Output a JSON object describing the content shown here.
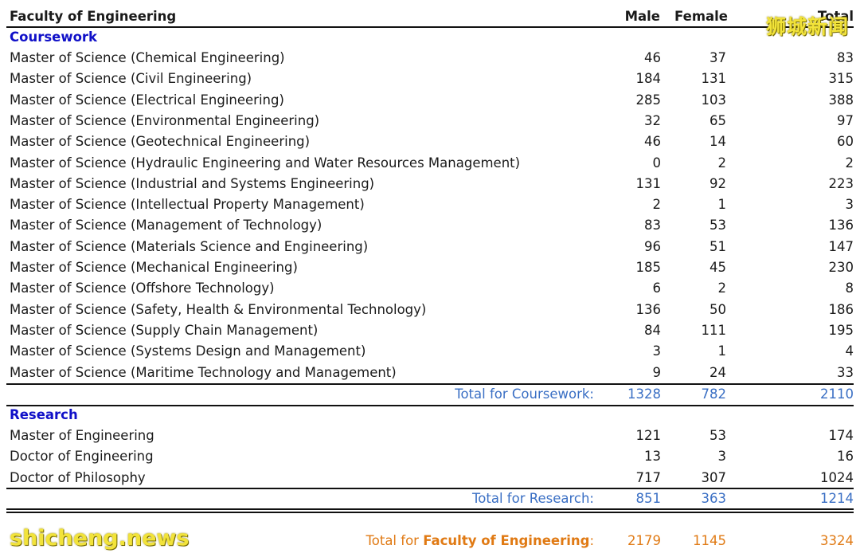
{
  "header": {
    "faculty": "Faculty of Engineering",
    "male": "Male",
    "female": "Female",
    "total": "Total"
  },
  "coursework": {
    "title": "Coursework",
    "rows": [
      {
        "program": "Master of Science (Chemical Engineering)",
        "male": "46",
        "female": "37",
        "total": "83"
      },
      {
        "program": "Master of Science (Civil Engineering)",
        "male": "184",
        "female": "131",
        "total": "315"
      },
      {
        "program": "Master of Science (Electrical Engineering)",
        "male": "285",
        "female": "103",
        "total": "388"
      },
      {
        "program": "Master of Science (Environmental Engineering)",
        "male": "32",
        "female": "65",
        "total": "97"
      },
      {
        "program": "Master of Science (Geotechnical Engineering)",
        "male": "46",
        "female": "14",
        "total": "60"
      },
      {
        "program": "Master of Science (Hydraulic Engineering and Water Resources Management)",
        "male": "0",
        "female": "2",
        "total": "2"
      },
      {
        "program": "Master of Science (Industrial and Systems Engineering)",
        "male": "131",
        "female": "92",
        "total": "223"
      },
      {
        "program": "Master of Science (Intellectual Property Management)",
        "male": "2",
        "female": "1",
        "total": "3"
      },
      {
        "program": "Master of Science (Management of Technology)",
        "male": "83",
        "female": "53",
        "total": "136"
      },
      {
        "program": "Master of Science (Materials Science and Engineering)",
        "male": "96",
        "female": "51",
        "total": "147"
      },
      {
        "program": "Master of Science (Mechanical Engineering)",
        "male": "185",
        "female": "45",
        "total": "230"
      },
      {
        "program": "Master of Science (Offshore Technology)",
        "male": "6",
        "female": "2",
        "total": "8"
      },
      {
        "program": "Master of Science (Safety, Health & Environmental Technology)",
        "male": "136",
        "female": "50",
        "total": "186"
      },
      {
        "program": "Master of Science (Supply Chain Management)",
        "male": "84",
        "female": "111",
        "total": "195"
      },
      {
        "program": "Master of Science (Systems Design and Management)",
        "male": "3",
        "female": "1",
        "total": "4"
      },
      {
        "program": "Master of Science (Maritime Technology and Management)",
        "male": "9",
        "female": "24",
        "total": "33"
      }
    ],
    "total_label": "Total for Coursework:",
    "total_male": "1328",
    "total_female": "782",
    "total_total": "2110"
  },
  "research": {
    "title": "Research",
    "rows": [
      {
        "program": "Master of Engineering",
        "male": "121",
        "female": "53",
        "total": "174"
      },
      {
        "program": "Doctor of Engineering",
        "male": "13",
        "female": "3",
        "total": "16"
      },
      {
        "program": "Doctor of Philosophy",
        "male": "717",
        "female": "307",
        "total": "1024"
      }
    ],
    "total_label": "Total for Research:",
    "total_male": "851",
    "total_female": "363",
    "total_total": "1214"
  },
  "grand_total": {
    "prefix": "Total for ",
    "faculty": "Faculty of Engineering",
    "suffix": ":",
    "male": "2179",
    "female": "1145",
    "total": "3324"
  },
  "watermarks": {
    "top": "狮城新闻",
    "bottom": "shicheng.news"
  }
}
